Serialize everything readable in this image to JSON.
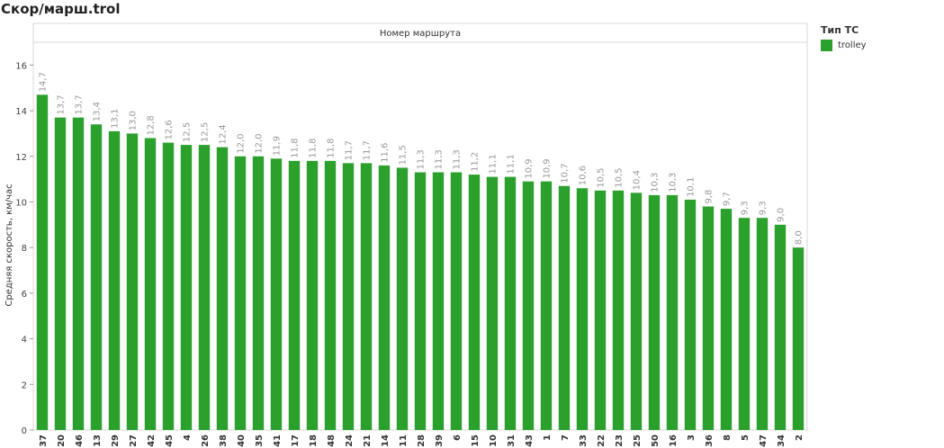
{
  "sheet": {
    "title": "Скор/марш.trol"
  },
  "legend": {
    "title": "Тип ТС",
    "items": [
      {
        "label": "trolley",
        "color": "#2ca02c"
      }
    ]
  },
  "chart_data": {
    "type": "bar",
    "header": "Номер маршрута",
    "ylabel": "Средняя скорость, км/час",
    "ylim": [
      0,
      17
    ],
    "yticks": [
      0,
      2,
      4,
      6,
      8,
      10,
      12,
      14,
      16
    ],
    "series": [
      {
        "name": "trolley",
        "color": "#2ca02c",
        "categories": [
          "37",
          "20",
          "46",
          "13",
          "29",
          "27",
          "42",
          "45",
          "4",
          "26",
          "38",
          "40",
          "35",
          "41",
          "17",
          "18",
          "48",
          "24",
          "21",
          "14",
          "11",
          "28",
          "39",
          "6",
          "15",
          "10",
          "31",
          "43",
          "1",
          "7",
          "33",
          "22",
          "23",
          "25",
          "50",
          "16",
          "3",
          "36",
          "8",
          "5",
          "47",
          "34",
          "2"
        ],
        "values": [
          14.7,
          13.7,
          13.7,
          13.4,
          13.1,
          13.0,
          12.8,
          12.6,
          12.5,
          12.5,
          12.4,
          12.0,
          12.0,
          11.9,
          11.8,
          11.8,
          11.8,
          11.7,
          11.7,
          11.6,
          11.5,
          11.3,
          11.3,
          11.3,
          11.2,
          11.1,
          11.1,
          10.9,
          10.9,
          10.7,
          10.6,
          10.5,
          10.5,
          10.4,
          10.3,
          10.3,
          10.1,
          9.8,
          9.7,
          9.3,
          9.3,
          9.0,
          8.0
        ],
        "labels": [
          "14,7",
          "13,7",
          "13,7",
          "13,4",
          "13,1",
          "13,0",
          "12,8",
          "12,6",
          "12,5",
          "12,5",
          "12,4",
          "12,0",
          "12,0",
          "11,9",
          "11,8",
          "11,8",
          "11,8",
          "11,7",
          "11,7",
          "11,6",
          "11,5",
          "11,3",
          "11,3",
          "11,3",
          "11,2",
          "11,1",
          "11,1",
          "10,9",
          "10,9",
          "10,7",
          "10,6",
          "10,5",
          "10,5",
          "10,4",
          "10,3",
          "10,3",
          "10,1",
          "9,8",
          "9,7",
          "9,3",
          "9,3",
          "9,0",
          "8,0"
        ]
      }
    ],
    "grid": false,
    "legend_position": "right"
  }
}
